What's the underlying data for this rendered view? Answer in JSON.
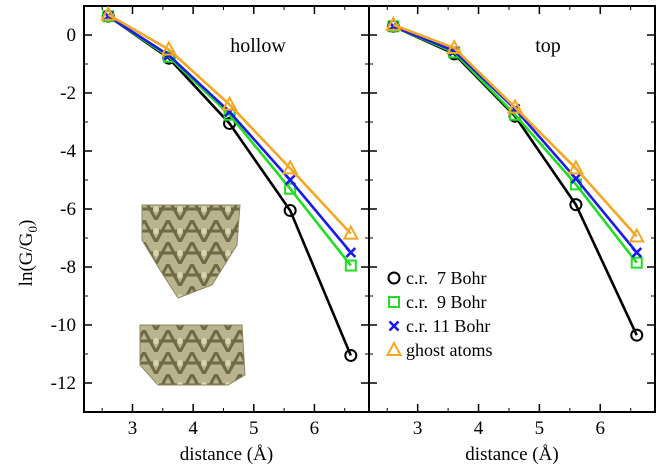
{
  "chart_data": [
    {
      "type": "line",
      "panel_label": "hollow",
      "xlabel": "distance (Å)",
      "ylabel_main": "ln(G/G",
      "ylabel_sub": "0",
      "ylabel_close": ")",
      "xlim": [
        2.2,
        6.9
      ],
      "ylim": [
        -13,
        1
      ],
      "xticks": [
        3,
        4,
        5,
        6
      ],
      "xtick_labels": [
        "3",
        "4",
        "5",
        "6"
      ],
      "yticks": [
        0,
        -2,
        -4,
        -6,
        -8,
        -10,
        -12
      ],
      "ytick_labels": [
        "0",
        "-2",
        "-4",
        "-6",
        "-8",
        "-10",
        "-12"
      ],
      "x": [
        2.6,
        3.6,
        4.6,
        5.6,
        6.6
      ],
      "series": [
        {
          "name": "c.r.  7 Bohr",
          "color": "#000000",
          "marker": "circle",
          "values": [
            0.65,
            -0.8,
            -3.05,
            -6.05,
            -11.05
          ]
        },
        {
          "name": "c.r.  9 Bohr",
          "color": "#22dd22",
          "marker": "square",
          "values": [
            0.65,
            -0.75,
            -2.75,
            -5.3,
            -7.95
          ]
        },
        {
          "name": "c.r. 11 Bohr",
          "color": "#1a1aee",
          "marker": "x",
          "values": [
            0.65,
            -0.7,
            -2.65,
            -5.0,
            -7.5
          ]
        },
        {
          "name": "ghost atoms",
          "color": "#f5a623",
          "marker": "triangle",
          "values": [
            0.7,
            -0.5,
            -2.4,
            -4.6,
            -6.85
          ]
        }
      ]
    },
    {
      "type": "line",
      "panel_label": "top",
      "xlabel": "distance (Å)",
      "xlim": [
        2.2,
        6.9
      ],
      "ylim": [
        -13,
        1
      ],
      "xticks": [
        3,
        4,
        5,
        6
      ],
      "xtick_labels": [
        "3",
        "4",
        "5",
        "6"
      ],
      "x": [
        2.6,
        3.6,
        4.6,
        5.6,
        6.6
      ],
      "series": [
        {
          "name": "c.r.  7 Bohr",
          "color": "#000000",
          "marker": "circle",
          "values": [
            0.3,
            -0.65,
            -2.8,
            -5.85,
            -10.35
          ]
        },
        {
          "name": "c.r.  9 Bohr",
          "color": "#22dd22",
          "marker": "square",
          "values": [
            0.3,
            -0.6,
            -2.75,
            -5.15,
            -7.85
          ]
        },
        {
          "name": "c.r. 11 Bohr",
          "color": "#1a1aee",
          "marker": "x",
          "values": [
            0.3,
            -0.55,
            -2.55,
            -4.95,
            -7.5
          ]
        },
        {
          "name": "ghost atoms",
          "color": "#f5a623",
          "marker": "triangle",
          "values": [
            0.35,
            -0.45,
            -2.5,
            -4.6,
            -6.95
          ]
        }
      ]
    }
  ],
  "legend_position": "lower-left of right panel"
}
